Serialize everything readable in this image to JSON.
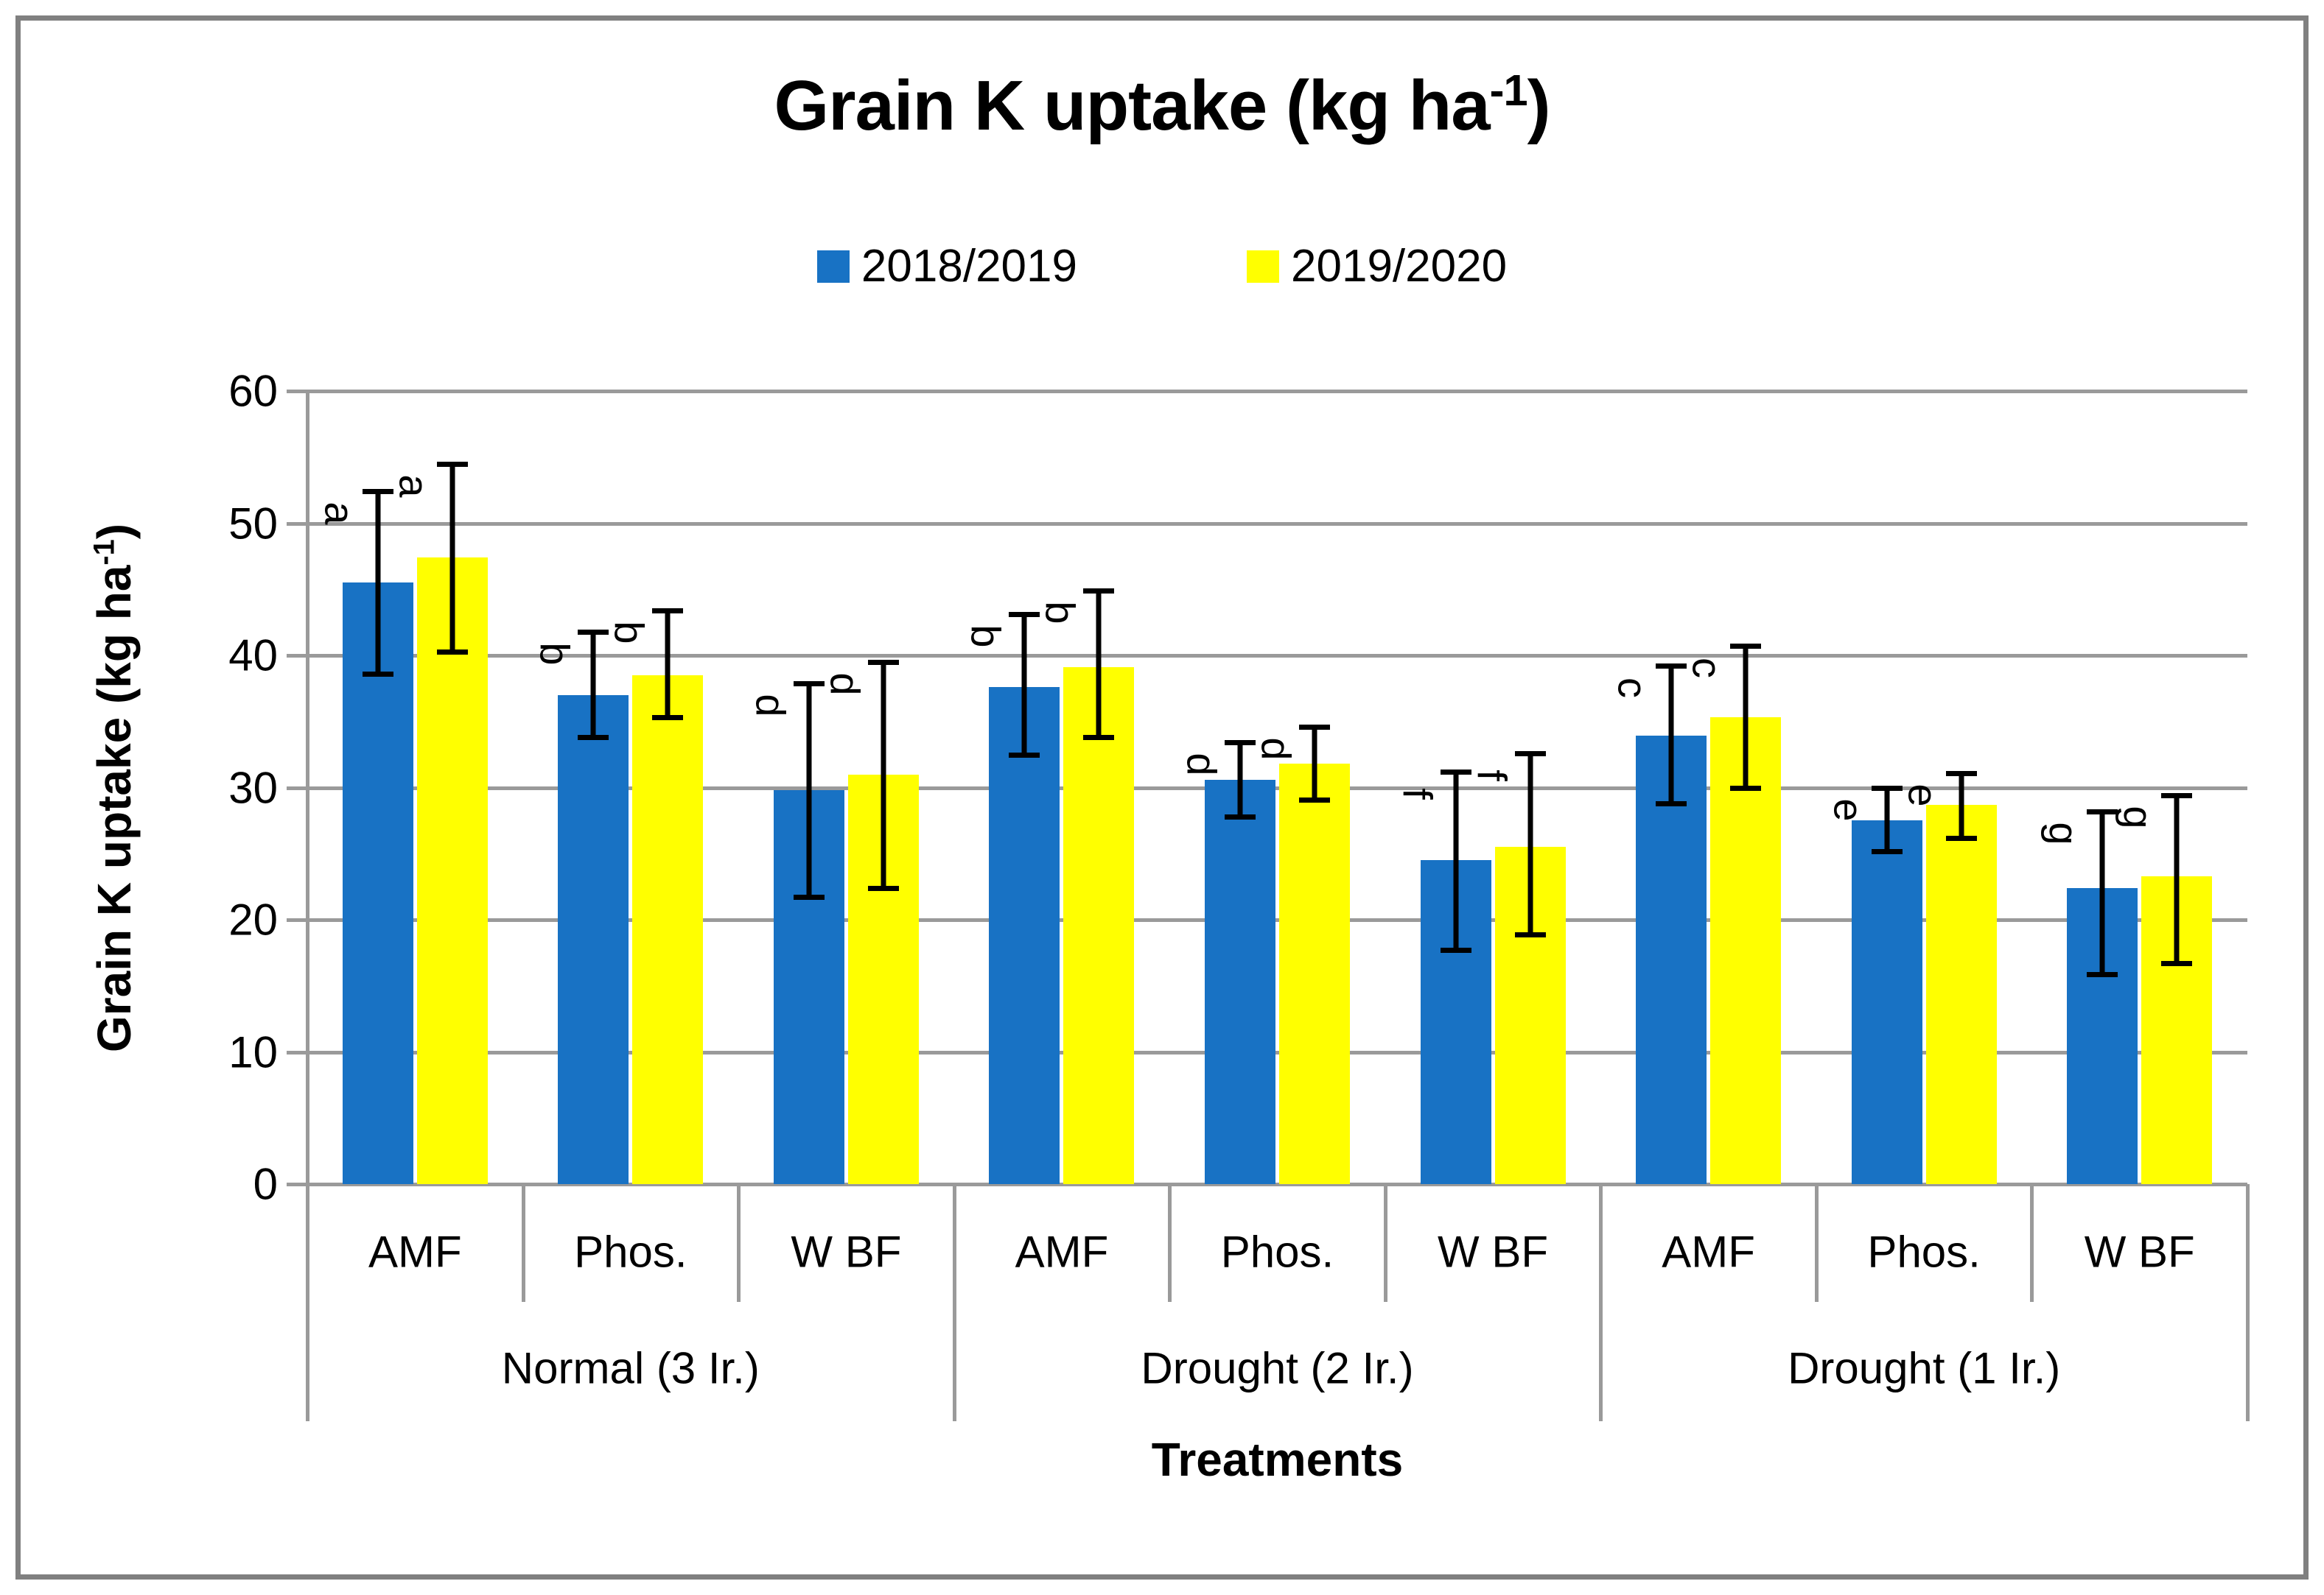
{
  "title": {
    "prefix": "Grain K uptake (kg ha",
    "sup": "-1",
    "suffix": ")"
  },
  "legend": [
    {
      "label": "2018/2019",
      "color": "#1872C4"
    },
    {
      "label": "2019/2020",
      "color": "#FFFF00"
    }
  ],
  "chart_data": {
    "type": "bar",
    "title": "Grain K uptake (kg ha-1)",
    "xlabel": "Treatments",
    "ylabel": {
      "prefix": "Grain K uptake (kg ha",
      "sup": "-1",
      "suffix": ")"
    },
    "ylim": [
      0,
      60
    ],
    "yticks": [
      0,
      10,
      20,
      30,
      40,
      50,
      60
    ],
    "grid": true,
    "legend_position": "top",
    "series_names": [
      "2018/2019",
      "2019/2020"
    ],
    "series_colors": [
      "#1872C4",
      "#FFFF00"
    ],
    "error_bar_color": "#000000",
    "gridline_color": "#9a9a9a",
    "groups": [
      {
        "label": "Normal (3 Ir.)",
        "categories": [
          {
            "label": "AMF",
            "bars": [
              {
                "series": "2018/2019",
                "value": 45.5,
                "err_low": 38.6,
                "err_high": 52.4,
                "letter": "a"
              },
              {
                "series": "2019/2020",
                "value": 47.4,
                "err_low": 40.3,
                "err_high": 54.5,
                "letter": "a"
              }
            ]
          },
          {
            "label": "Phos.",
            "bars": [
              {
                "series": "2018/2019",
                "value": 37.0,
                "err_low": 33.8,
                "err_high": 41.8,
                "letter": "b"
              },
              {
                "series": "2019/2020",
                "value": 38.5,
                "err_low": 35.3,
                "err_high": 43.4,
                "letter": "b"
              }
            ]
          },
          {
            "label": "W BF",
            "bars": [
              {
                "series": "2018/2019",
                "value": 29.8,
                "err_low": 21.7,
                "err_high": 37.9,
                "letter": "d"
              },
              {
                "series": "2019/2020",
                "value": 31.0,
                "err_low": 22.4,
                "err_high": 39.5,
                "letter": "d"
              }
            ]
          }
        ]
      },
      {
        "label": "Drought (2 Ir.)",
        "categories": [
          {
            "label": "AMF",
            "bars": [
              {
                "series": "2018/2019",
                "value": 37.6,
                "err_low": 32.5,
                "err_high": 43.1,
                "letter": "b"
              },
              {
                "series": "2019/2020",
                "value": 39.1,
                "err_low": 33.8,
                "err_high": 44.9,
                "letter": "b"
              }
            ]
          },
          {
            "label": "Phos.",
            "bars": [
              {
                "series": "2018/2019",
                "value": 30.6,
                "err_low": 27.8,
                "err_high": 33.4,
                "letter": "d"
              },
              {
                "series": "2019/2020",
                "value": 31.8,
                "err_low": 29.1,
                "err_high": 34.6,
                "letter": "d"
              }
            ]
          },
          {
            "label": "W BF",
            "bars": [
              {
                "series": "2018/2019",
                "value": 24.5,
                "err_low": 17.7,
                "err_high": 31.2,
                "letter": "f"
              },
              {
                "series": "2019/2020",
                "value": 25.5,
                "err_low": 18.9,
                "err_high": 32.6,
                "letter": "f"
              }
            ]
          }
        ]
      },
      {
        "label": "Drought (1 Ir.)",
        "categories": [
          {
            "label": "AMF",
            "bars": [
              {
                "series": "2018/2019",
                "value": 33.9,
                "err_low": 28.8,
                "err_high": 39.2,
                "letter": "c"
              },
              {
                "series": "2019/2020",
                "value": 35.3,
                "err_low": 30.0,
                "err_high": 40.7,
                "letter": "c"
              }
            ]
          },
          {
            "label": "Phos.",
            "bars": [
              {
                "series": "2018/2019",
                "value": 27.5,
                "err_low": 25.2,
                "err_high": 30.0,
                "letter": "e"
              },
              {
                "series": "2019/2020",
                "value": 28.7,
                "err_low": 26.2,
                "err_high": 31.1,
                "letter": "e"
              }
            ]
          },
          {
            "label": "W BF",
            "bars": [
              {
                "series": "2018/2019",
                "value": 22.4,
                "err_low": 15.9,
                "err_high": 28.2,
                "letter": "g"
              },
              {
                "series": "2019/2020",
                "value": 23.3,
                "err_low": 16.7,
                "err_high": 29.4,
                "letter": "g"
              }
            ]
          }
        ]
      }
    ]
  }
}
